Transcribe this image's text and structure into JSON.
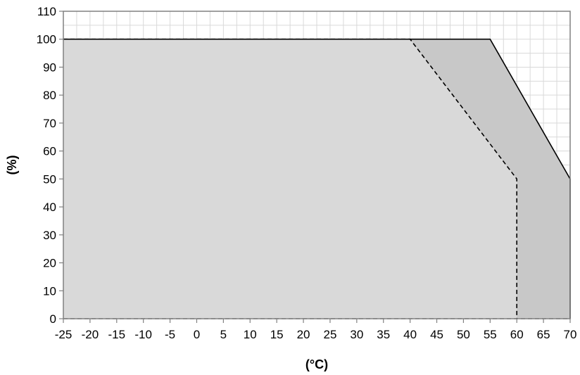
{
  "chart_data": {
    "type": "area",
    "xlabel": "(°C)",
    "ylabel": "(%)",
    "xlim": [
      -25,
      70
    ],
    "ylim": [
      0,
      110
    ],
    "xticks": [
      -25,
      -20,
      -15,
      -10,
      -5,
      0,
      5,
      10,
      15,
      20,
      25,
      30,
      35,
      40,
      45,
      50,
      55,
      60,
      65,
      70
    ],
    "yticks": [
      0,
      10,
      20,
      30,
      40,
      50,
      60,
      70,
      80,
      90,
      100,
      110
    ],
    "grid": true,
    "series": [
      {
        "line_style": "solid",
        "fill_color": "#c8c8c8",
        "points": [
          [
            -25,
            100
          ],
          [
            55,
            100
          ],
          [
            70,
            50
          ],
          [
            70,
            0
          ]
        ]
      },
      {
        "line_style": "dashed",
        "fill_color": "#d9d9d9",
        "points": [
          [
            -25,
            100
          ],
          [
            40,
            100
          ],
          [
            60,
            50
          ],
          [
            60,
            0
          ]
        ]
      }
    ],
    "colors": {
      "grid": "#d9d9d9",
      "axis": "#808080",
      "line": "#000000"
    }
  }
}
